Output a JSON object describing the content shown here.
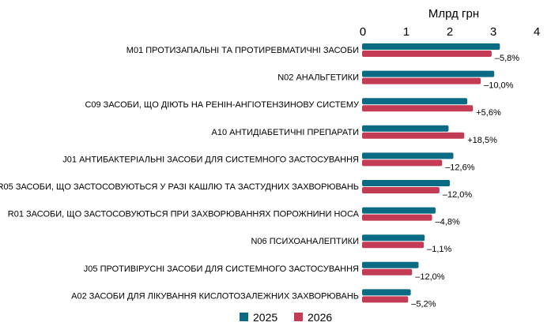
{
  "chart_data": {
    "type": "bar",
    "orientation": "horizontal",
    "title": "",
    "xlabel": "Млрд грн",
    "ylabel": "",
    "xlim": [
      0,
      4
    ],
    "xticks": [
      "0",
      "1",
      "2",
      "3",
      "4"
    ],
    "grid": false,
    "legend_position": "bottom",
    "categories": [
      "M01 ПРОТИЗАПАЛЬНІ ТА ПРОТИРЕВМАТИЧНІ ЗАСОБИ",
      "N02 АНАЛЬГЕТИКИ",
      "C09 ЗАСОБИ, ЩО ДІЮТЬ НА РЕНІН-АНГІОТЕНЗИНОВУ СИСТЕМУ",
      "A10 АНТИДІАБЕТИЧНІ ПРЕПАРАТИ",
      "J01 АНТИБАКТЕРІАЛЬНІ ЗАСОБИ ДЛЯ СИСТЕМНОГО ЗАСТОСУВАННЯ",
      "R05 ЗАСОБИ, ЩО ЗАСТОСОВУЮТЬСЯ У РАЗІ КАШЛЮ ТА ЗАСТУДНИХ ЗАХВОРЮВАНЬ",
      "R01 ЗАСОБИ, ЩО ЗАСТОСОВУЮТЬСЯ ПРИ ЗАХВОРЮВАННЯХ ПОРОЖНИНИ НОСА",
      "N06 ПСИХОАНАЛЕПТИКИ",
      "J05  ПРОТИВІРУСНІ ЗАСОБИ ДЛЯ СИСТЕМНОГО ЗАСТОСУВАННЯ",
      "A02 ЗАСОБИ ДЛЯ ЛІКУВАННЯ КИСЛОТОЗАЛЕЖНИХ ЗАХВОРЮВАНЬ"
    ],
    "series": [
      {
        "name": "2025",
        "color": "#0b6a84",
        "values": [
          3.17,
          3.04,
          2.42,
          1.99,
          2.1,
          2.02,
          1.69,
          1.44,
          1.3,
          1.12
        ]
      },
      {
        "name": "2026",
        "color": "#c43b55",
        "values": [
          2.98,
          2.73,
          2.55,
          2.35,
          1.84,
          1.78,
          1.61,
          1.42,
          1.15,
          1.06
        ]
      }
    ],
    "annotations": [
      "–5,8%",
      "–10,0%",
      "+5,6%",
      "+18,5%",
      "–12,6%",
      "–12,0%",
      "–4,8%",
      "–1,1%",
      "–12,0%",
      "–5,2%"
    ]
  }
}
